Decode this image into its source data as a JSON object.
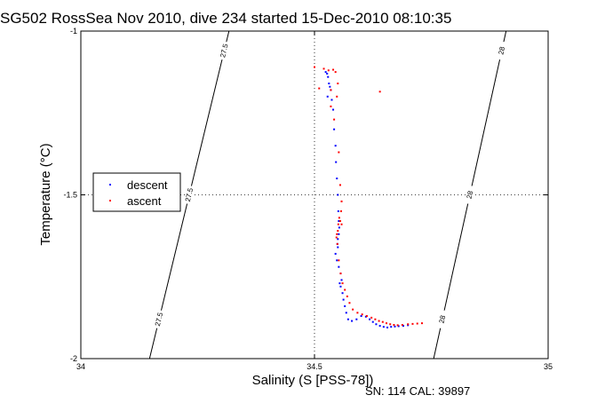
{
  "chart_data": {
    "type": "scatter",
    "title": "SG502 RossSea Nov 2010, dive 234 started 15-Dec-2010 08:10:35",
    "xlabel": "Salinity (S [PSS-78])",
    "ylabel": "Temperature (°C)",
    "footer": "SN: 114  CAL: 39897",
    "xlim": [
      34,
      35
    ],
    "ylim": [
      -2,
      -1
    ],
    "x_ticks": [
      "34",
      "34.5",
      "35"
    ],
    "y_ticks": [
      "-1",
      "-1.5",
      "-2"
    ],
    "grid": "dotted at 34.5 and -1.5",
    "legend": {
      "placement": "center-left",
      "entries": [
        "descent",
        "ascent"
      ]
    },
    "series": [
      {
        "name": "descent",
        "color": "#0000ff",
        "x": [
          34.524,
          34.527,
          34.529,
          34.531,
          34.533,
          34.535,
          34.528,
          34.537,
          34.54,
          34.542,
          34.545,
          34.546,
          34.548,
          34.55,
          34.551,
          34.552,
          34.553,
          34.552,
          34.55,
          34.549,
          34.55,
          34.545,
          34.548,
          34.552,
          34.556,
          34.558,
          34.554,
          34.556,
          34.56,
          34.562,
          34.565,
          34.568,
          34.572,
          34.58,
          34.59,
          34.6,
          34.61,
          34.618,
          34.625,
          34.632,
          34.64,
          34.648,
          34.656,
          34.664,
          34.672,
          34.68,
          34.69,
          34.7
        ],
        "y": [
          -1.125,
          -1.13,
          -1.14,
          -1.16,
          -1.17,
          -1.18,
          -1.2,
          -1.21,
          -1.24,
          -1.3,
          -1.35,
          -1.4,
          -1.45,
          -1.5,
          -1.55,
          -1.58,
          -1.6,
          -1.62,
          -1.635,
          -1.65,
          -1.66,
          -1.68,
          -1.7,
          -1.72,
          -1.74,
          -1.76,
          -1.77,
          -1.78,
          -1.8,
          -1.82,
          -1.84,
          -1.86,
          -1.88,
          -1.885,
          -1.88,
          -1.87,
          -1.872,
          -1.88,
          -1.888,
          -1.895,
          -1.9,
          -1.903,
          -1.905,
          -1.903,
          -1.902,
          -1.901,
          -1.9,
          -1.898
        ]
      },
      {
        "name": "ascent",
        "color": "#ff0000",
        "x": [
          34.5,
          34.52,
          34.53,
          34.54,
          34.545,
          34.55,
          34.548,
          34.535,
          34.542,
          34.552,
          34.555,
          34.558,
          34.557,
          34.553,
          34.551,
          34.55,
          34.548,
          34.549,
          34.552,
          34.556,
          34.56,
          34.565,
          34.57,
          34.575,
          34.582,
          34.592,
          34.602,
          34.612,
          34.622,
          34.63,
          34.638,
          34.646,
          34.654,
          34.662,
          34.67,
          34.678,
          34.688,
          34.7,
          34.71,
          34.72,
          34.73,
          34.555,
          34.535,
          34.64,
          34.51,
          34.558,
          34.547
        ],
        "y": [
          -1.11,
          -1.115,
          -1.12,
          -1.118,
          -1.125,
          -1.16,
          -1.2,
          -1.18,
          -1.27,
          -1.37,
          -1.47,
          -1.52,
          -1.55,
          -1.57,
          -1.59,
          -1.61,
          -1.62,
          -1.65,
          -1.7,
          -1.74,
          -1.77,
          -1.79,
          -1.81,
          -1.83,
          -1.85,
          -1.86,
          -1.865,
          -1.87,
          -1.875,
          -1.88,
          -1.885,
          -1.888,
          -1.892,
          -1.895,
          -1.897,
          -1.898,
          -1.897,
          -1.895,
          -1.894,
          -1.893,
          -1.892,
          -1.58,
          -1.23,
          -1.185,
          -1.175,
          -1.59,
          -1.63
        ]
      }
    ],
    "isopycnals": [
      {
        "label": "27.5",
        "x": [
          34.317,
          34.147
        ],
        "y": [
          -1,
          -2
        ]
      },
      {
        "label": "28",
        "x": [
          34.91,
          34.755
        ],
        "y": [
          -1,
          -2
        ]
      }
    ]
  }
}
